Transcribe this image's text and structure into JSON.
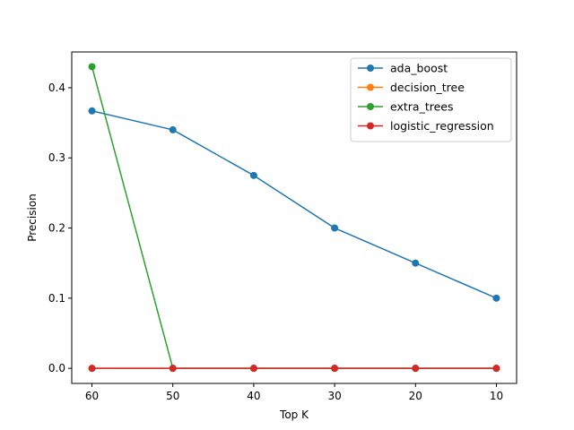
{
  "chart_data": {
    "type": "line",
    "xlabel": "Top K",
    "ylabel": "Precision",
    "x": [
      60,
      50,
      40,
      30,
      20,
      10
    ],
    "xlim": [
      62.5,
      7.5
    ],
    "ylim": [
      -0.0215,
      0.451
    ],
    "x_ticks": [
      60,
      50,
      40,
      30,
      20,
      10
    ],
    "x_tick_labels": [
      "60",
      "50",
      "40",
      "30",
      "20",
      "10"
    ],
    "y_ticks": [
      0.0,
      0.1,
      0.2,
      0.3,
      0.4
    ],
    "y_tick_labels": [
      "0.0",
      "0.1",
      "0.2",
      "0.3",
      "0.4"
    ],
    "grid": false,
    "legend_position": "top-right",
    "series": [
      {
        "name": "ada_boost",
        "color": "#1f77b4",
        "values": [
          0.367,
          0.34,
          0.275,
          0.2,
          0.15,
          0.1
        ]
      },
      {
        "name": "decision_tree",
        "color": "#ff7f0e",
        "values": [
          0.0,
          0.0,
          0.0,
          0.0,
          0.0,
          0.0
        ]
      },
      {
        "name": "extra_trees",
        "color": "#2ca02c",
        "values": [
          0.43,
          0.0,
          0.0,
          0.0,
          0.0,
          0.0
        ]
      },
      {
        "name": "logistic_regression",
        "color": "#d62728",
        "values": [
          0.0,
          0.0,
          0.0,
          0.0,
          0.0,
          0.0
        ]
      }
    ]
  }
}
